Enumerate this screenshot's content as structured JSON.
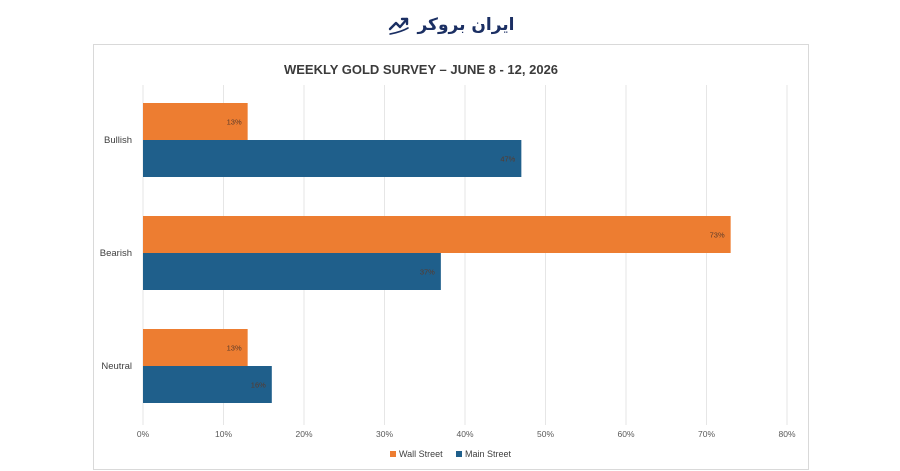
{
  "logo": {
    "text": "ایران بروکر",
    "icon": "trend-chart-icon",
    "color": "#1b2f63"
  },
  "chart_data": {
    "type": "bar",
    "orientation": "horizontal",
    "title": "WEEKLY GOLD SURVEY – JUNE 8 - 12, 2026",
    "categories": [
      "Bullish",
      "Bearish",
      "Neutral"
    ],
    "series": [
      {
        "name": "Wall Street",
        "color": "#ed7d31",
        "values": [
          13,
          73,
          13
        ],
        "labels": [
          "13%",
          "73%",
          "13%"
        ]
      },
      {
        "name": "Main Street",
        "color": "#1f5f8b",
        "values": [
          47,
          37,
          16
        ],
        "labels": [
          "47%",
          "37%",
          "16%"
        ]
      }
    ],
    "xlim": [
      0,
      80
    ],
    "xticks": [
      "0%",
      "10%",
      "20%",
      "30%",
      "40%",
      "50%",
      "60%",
      "70%",
      "80%"
    ],
    "grid": true,
    "legend_position": "bottom"
  }
}
